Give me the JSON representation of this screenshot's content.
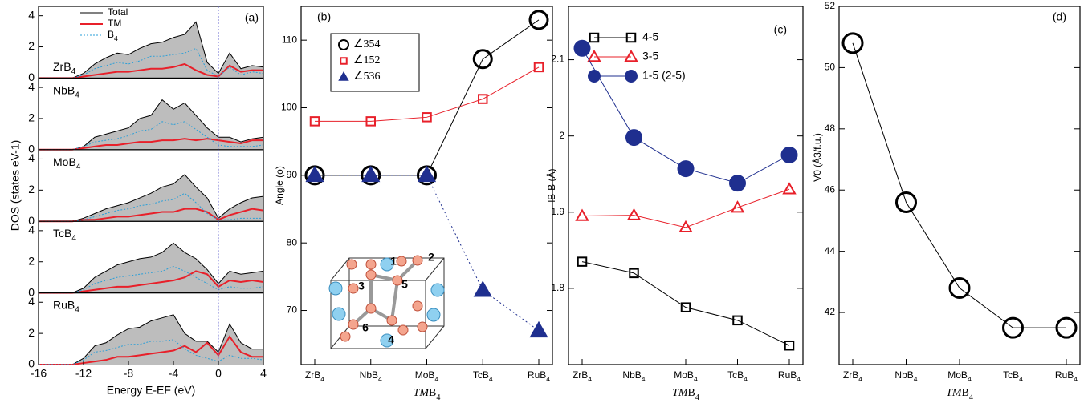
{
  "chart_data": [
    {
      "type": "area",
      "label": "(a)",
      "xlabel": "Energy E-EF (eV)",
      "ylabel": "DOS (states eV-1)",
      "xlim": [
        -16,
        4
      ],
      "xticks": [
        -16,
        -12,
        -8,
        -4,
        0,
        4
      ],
      "ylim": [
        0,
        4.6
      ],
      "yticks": [
        0,
        2,
        4
      ],
      "x": [
        -16,
        -15,
        -14,
        -13,
        -12,
        -11,
        -10,
        -9,
        -8,
        -7,
        -6,
        -5,
        -4,
        -3,
        -2,
        -1,
        0,
        1,
        2,
        3,
        4
      ],
      "series": [
        {
          "name": "Total",
          "color": "#000000"
        },
        {
          "name": "TM",
          "color": "#e8202a"
        },
        {
          "name": "B4",
          "color": "#2a9fd8"
        }
      ],
      "subplots": [
        {
          "label": "ZrB4",
          "data": [
            [
              0,
              0,
              0,
              0,
              0.3,
              0.9,
              1.3,
              1.6,
              1.5,
              1.9,
              2.2,
              2.3,
              2.6,
              2.8,
              3.6,
              1.0,
              0.3,
              1.6,
              0.6,
              0.8,
              0.7
            ],
            [
              0,
              0,
              0,
              0,
              0.1,
              0.2,
              0.3,
              0.4,
              0.4,
              0.5,
              0.6,
              0.6,
              0.7,
              0.9,
              0.5,
              0.2,
              0.1,
              0.8,
              0.4,
              0.5,
              0.5
            ],
            [
              0,
              0,
              0,
              0,
              0.2,
              0.6,
              0.8,
              1.0,
              0.9,
              1.1,
              1.4,
              1.4,
              1.5,
              1.6,
              1.9,
              0.5,
              0.1,
              0.7,
              0.2,
              0.4,
              0.3
            ]
          ]
        },
        {
          "label": "NbB4",
          "data": [
            [
              0,
              0,
              0,
              0,
              0.2,
              0.8,
              1.0,
              1.2,
              1.4,
              2.0,
              2.2,
              3.2,
              2.6,
              3.0,
              2.2,
              1.4,
              0.8,
              0.8,
              0.5,
              0.7,
              0.8
            ],
            [
              0,
              0,
              0,
              0,
              0.1,
              0.2,
              0.3,
              0.3,
              0.4,
              0.5,
              0.5,
              0.6,
              0.6,
              0.7,
              0.6,
              0.7,
              0.6,
              0.5,
              0.4,
              0.6,
              0.6
            ],
            [
              0,
              0,
              0,
              0,
              0.2,
              0.5,
              0.6,
              0.7,
              0.9,
              1.2,
              1.3,
              1.8,
              1.6,
              1.8,
              1.3,
              0.8,
              0.3,
              0.2,
              0.2,
              0.2,
              0.3
            ]
          ]
        },
        {
          "label": "MoB4",
          "data": [
            [
              0,
              0,
              0,
              0,
              0.2,
              0.5,
              0.8,
              1.0,
              1.2,
              1.5,
              1.8,
              2.2,
              2.4,
              3.0,
              2.2,
              1.5,
              0.2,
              0.8,
              1.2,
              1.5,
              1.6
            ],
            [
              0,
              0,
              0,
              0,
              0.1,
              0.1,
              0.2,
              0.3,
              0.3,
              0.4,
              0.5,
              0.6,
              0.6,
              0.8,
              0.8,
              0.6,
              0.1,
              0.4,
              0.6,
              0.8,
              0.7
            ],
            [
              0,
              0,
              0,
              0,
              0.1,
              0.3,
              0.5,
              0.7,
              0.8,
              1.0,
              1.1,
              1.3,
              1.4,
              1.8,
              1.2,
              0.5,
              0.1,
              0.1,
              0.2,
              0.2,
              0.2
            ]
          ]
        },
        {
          "label": "TcB4",
          "data": [
            [
              0,
              0,
              0,
              0,
              0.3,
              1.0,
              1.4,
              1.8,
              2.0,
              2.2,
              2.3,
              2.6,
              3.2,
              2.6,
              2.2,
              1.5,
              0.6,
              1.4,
              1.2,
              1.3,
              1.4
            ],
            [
              0,
              0,
              0,
              0,
              0.1,
              0.2,
              0.3,
              0.4,
              0.4,
              0.5,
              0.6,
              0.7,
              0.8,
              1.0,
              1.4,
              1.2,
              0.4,
              0.8,
              0.7,
              0.8,
              0.7
            ],
            [
              0,
              0,
              0,
              0,
              0.2,
              0.6,
              0.8,
              1.0,
              1.1,
              1.2,
              1.3,
              1.4,
              1.7,
              1.4,
              1.0,
              0.6,
              0.2,
              0.4,
              0.3,
              0.3,
              0.4
            ]
          ]
        },
        {
          "label": "RuB4",
          "data": [
            [
              0,
              0,
              0,
              0,
              0.4,
              1.2,
              1.4,
              1.9,
              2.3,
              2.4,
              2.8,
              3.0,
              3.2,
              2.0,
              1.5,
              1.5,
              0.8,
              2.6,
              1.4,
              1.0,
              1.0
            ],
            [
              0,
              0,
              0,
              0,
              0.1,
              0.2,
              0.3,
              0.5,
              0.5,
              0.6,
              0.7,
              0.8,
              0.9,
              1.2,
              0.8,
              1.4,
              0.6,
              1.8,
              0.8,
              0.5,
              0.5
            ],
            [
              0,
              0,
              0,
              0,
              0.3,
              0.8,
              0.9,
              1.1,
              1.3,
              1.3,
              1.5,
              1.5,
              1.6,
              1.0,
              0.6,
              0.4,
              0.2,
              0.6,
              0.4,
              0.4,
              0.3
            ]
          ]
        }
      ]
    },
    {
      "type": "line",
      "label": "(b)",
      "xlabel": "TMB4",
      "ylabel": "Angle (o)",
      "categories": [
        "ZrB4",
        "NbB4",
        "MoB4",
        "TcB4",
        "RuB4"
      ],
      "ylim": [
        62,
        115
      ],
      "yticks": [
        70,
        80,
        90,
        100,
        110
      ],
      "inset_labels": [
        "1",
        "2",
        "3",
        "4",
        "5",
        "6"
      ],
      "series": [
        {
          "name": "∠354",
          "color": "#000000",
          "marker": "circle",
          "filled": false,
          "linestyle": "solid",
          "values": [
            90,
            90,
            90,
            107.2,
            113
          ]
        },
        {
          "name": "∠152",
          "color": "#e8202a",
          "marker": "square",
          "filled": false,
          "linestyle": "solid",
          "values": [
            98,
            98,
            98.6,
            101.3,
            106
          ]
        },
        {
          "name": "∠536",
          "color": "#1f2f8f",
          "marker": "triangle",
          "filled": true,
          "linestyle": "dotted",
          "values": [
            90,
            90,
            90,
            73,
            67
          ]
        }
      ]
    },
    {
      "type": "line",
      "label": "(c)",
      "xlabel": "TMB4",
      "ylabel": "lB-B (Å)",
      "categories": [
        "ZrB4",
        "NbB4",
        "MoB4",
        "TcB4",
        "RuB4"
      ],
      "ylim": [
        1.7,
        2.17
      ],
      "yticks": [
        1.8,
        1.9,
        2,
        2.1
      ],
      "series": [
        {
          "name": "4-5",
          "color": "#000000",
          "marker": "square",
          "filled": false,
          "linestyle": "solid",
          "values": [
            1.835,
            1.82,
            1.775,
            1.758,
            1.725
          ]
        },
        {
          "name": "3-5",
          "color": "#e8202a",
          "marker": "triangle",
          "filled": false,
          "linestyle": "solid",
          "values": [
            1.895,
            1.896,
            1.88,
            1.906,
            1.93
          ]
        },
        {
          "name": "1-5 (2-5)",
          "color": "#1f2f8f",
          "marker": "circle",
          "filled": true,
          "linestyle": "solid",
          "values": [
            2.115,
            1.998,
            1.957,
            1.938,
            1.975
          ]
        }
      ]
    },
    {
      "type": "line",
      "label": "(d)",
      "xlabel": "TMB4",
      "ylabel": "V0 (Å3/f.u.)",
      "categories": [
        "ZrB4",
        "NbB4",
        "MoB4",
        "TcB4",
        "RuB4"
      ],
      "ylim": [
        40.3,
        52
      ],
      "yticks": [
        42,
        44,
        46,
        48,
        50,
        52
      ],
      "series": [
        {
          "color": "#000000",
          "marker": "circle",
          "filled": false,
          "linestyle": "solid",
          "values": [
            50.8,
            45.6,
            42.8,
            41.5,
            41.5
          ]
        }
      ]
    }
  ]
}
